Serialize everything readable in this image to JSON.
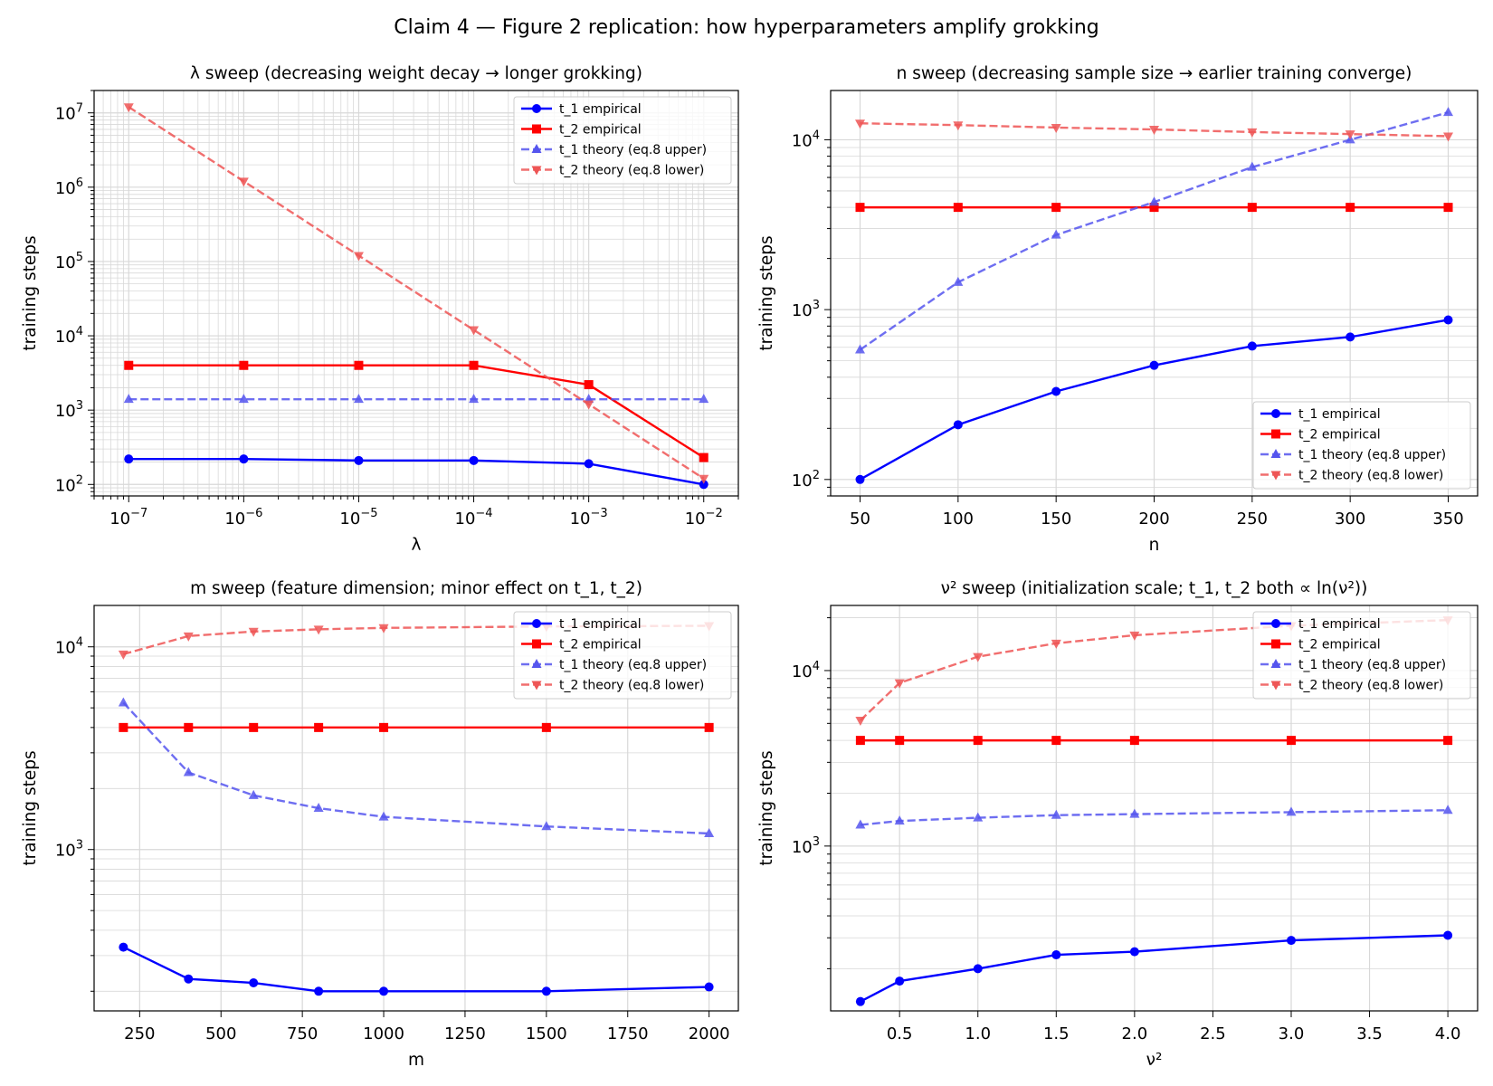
{
  "figure": {
    "title": "Claim 4 — Figure 2 replication: how hyperparameters amplify grokking"
  },
  "chart_data": [
    {
      "type": "line",
      "title": "λ sweep (decreasing weight decay → longer grokking)",
      "xlabel": "λ",
      "ylabel": "training steps",
      "xscale": "log",
      "yscale": "log",
      "xlim": [
        5e-08,
        0.02
      ],
      "ylim": [
        70,
        20000000.0
      ],
      "xticks": [
        1e-07,
        1e-06,
        1e-05,
        0.0001,
        0.001,
        0.01
      ],
      "xticklabels": [
        [
          "10",
          "−7"
        ],
        [
          "10",
          "−6"
        ],
        [
          "10",
          "−5"
        ],
        [
          "10",
          "−4"
        ],
        [
          "10",
          "−3"
        ],
        [
          "10",
          "−2"
        ]
      ],
      "yticks": [
        100,
        1000,
        10000,
        100000,
        1000000,
        10000000
      ],
      "yticklabels": [
        [
          "10",
          "2"
        ],
        [
          "10",
          "3"
        ],
        [
          "10",
          "4"
        ],
        [
          "10",
          "5"
        ],
        [
          "10",
          "6"
        ],
        [
          "10",
          "7"
        ]
      ],
      "grid": true,
      "minor_grid_x": true,
      "legend_loc": "top-right",
      "x": [
        1e-07,
        1e-06,
        1e-05,
        0.0001,
        0.001,
        0.01
      ],
      "series": [
        {
          "name": "t_1 empirical",
          "values": [
            220,
            220,
            210,
            210,
            190,
            100
          ],
          "color": "#0000ff",
          "dash": false,
          "marker": "circle"
        },
        {
          "name": "t_2 empirical",
          "values": [
            4000,
            4000,
            4000,
            4000,
            2200,
            230
          ],
          "color": "#ff0000",
          "dash": false,
          "marker": "square"
        },
        {
          "name": "t_1 theory (eq.8 upper)",
          "values": [
            1400,
            1400,
            1400,
            1400,
            1400,
            1400
          ],
          "color": "#5555ee",
          "dash": true,
          "marker": "triangle-up"
        },
        {
          "name": "t_2 theory (eq.8 lower)",
          "values": [
            12000000,
            1200000,
            120000,
            12000,
            1200,
            120
          ],
          "color": "#ee5555",
          "dash": true,
          "marker": "triangle-down"
        }
      ]
    },
    {
      "type": "line",
      "title": "n sweep (decreasing sample size → earlier training converge)",
      "xlabel": "n",
      "ylabel": "training steps",
      "xscale": "linear",
      "yscale": "log",
      "xlim": [
        35,
        365
      ],
      "ylim": [
        80,
        19500
      ],
      "xticks": [
        50,
        100,
        150,
        200,
        250,
        300,
        350
      ],
      "xticklabels": [
        [
          "50"
        ],
        [
          "100"
        ],
        [
          "150"
        ],
        [
          "200"
        ],
        [
          "250"
        ],
        [
          "300"
        ],
        [
          "350"
        ]
      ],
      "yticks": [
        100,
        1000,
        10000
      ],
      "yticklabels": [
        [
          "10",
          "2"
        ],
        [
          "10",
          "3"
        ],
        [
          "10",
          "4"
        ]
      ],
      "grid": true,
      "legend_loc": "bottom-right",
      "x": [
        50,
        100,
        150,
        200,
        250,
        300,
        350
      ],
      "series": [
        {
          "name": "t_1 empirical",
          "values": [
            100,
            210,
            330,
            470,
            610,
            690,
            870
          ],
          "color": "#0000ff",
          "dash": false,
          "marker": "circle"
        },
        {
          "name": "t_2 empirical",
          "values": [
            4000,
            4000,
            4000,
            4000,
            4000,
            4000,
            4000
          ],
          "color": "#ff0000",
          "dash": false,
          "marker": "square"
        },
        {
          "name": "t_1 theory (eq.8 upper)",
          "values": [
            580,
            1450,
            2750,
            4300,
            6900,
            10000,
            14500
          ],
          "color": "#5555ee",
          "dash": true,
          "marker": "triangle-up"
        },
        {
          "name": "t_2 theory (eq.8 lower)",
          "values": [
            12500,
            12200,
            11800,
            11500,
            11100,
            10800,
            10500
          ],
          "color": "#ee5555",
          "dash": true,
          "marker": "triangle-down"
        }
      ]
    },
    {
      "type": "line",
      "title": "m sweep (feature dimension; minor effect on t_1, t_2)",
      "xlabel": "m",
      "ylabel": "training steps",
      "xscale": "linear",
      "yscale": "log",
      "xlim": [
        110,
        2090
      ],
      "ylim": [
        160,
        16000
      ],
      "xticks": [
        250,
        500,
        750,
        1000,
        1250,
        1500,
        1750,
        2000
      ],
      "xticklabels": [
        [
          "250"
        ],
        [
          "500"
        ],
        [
          "750"
        ],
        [
          "1000"
        ],
        [
          "1250"
        ],
        [
          "1500"
        ],
        [
          "1750"
        ],
        [
          "2000"
        ]
      ],
      "yticks": [
        1000,
        10000
      ],
      "yticklabels": [
        [
          "10",
          "3"
        ],
        [
          "10",
          "4"
        ]
      ],
      "grid": true,
      "legend_loc": "top-right",
      "x": [
        200,
        400,
        600,
        800,
        1000,
        1500,
        2000
      ],
      "series": [
        {
          "name": "t_1 empirical",
          "values": [
            330,
            230,
            220,
            200,
            200,
            200,
            210
          ],
          "color": "#0000ff",
          "dash": false,
          "marker": "circle"
        },
        {
          "name": "t_2 empirical",
          "values": [
            4000,
            4000,
            4000,
            4000,
            4000,
            4000,
            4000
          ],
          "color": "#ff0000",
          "dash": false,
          "marker": "square"
        },
        {
          "name": "t_1 theory (eq.8 upper)",
          "values": [
            5300,
            2400,
            1850,
            1600,
            1450,
            1300,
            1200
          ],
          "color": "#5555ee",
          "dash": true,
          "marker": "triangle-up"
        },
        {
          "name": "t_2 theory (eq.8 lower)",
          "values": [
            9200,
            11300,
            11900,
            12200,
            12400,
            12600,
            12700
          ],
          "color": "#ee5555",
          "dash": true,
          "marker": "triangle-down"
        }
      ]
    },
    {
      "type": "line",
      "title": "ν² sweep (initialization scale; t_1, t_2 both ∝ ln(ν²))",
      "xlabel": "ν²",
      "ylabel": "training steps",
      "xscale": "linear",
      "yscale": "log",
      "xlim": [
        0.06,
        4.19
      ],
      "ylim": [
        115,
        23500
      ],
      "xticks": [
        0.5,
        1.0,
        1.5,
        2.0,
        2.5,
        3.0,
        3.5,
        4.0
      ],
      "xticklabels": [
        [
          "0.5"
        ],
        [
          "1.0"
        ],
        [
          "1.5"
        ],
        [
          "2.0"
        ],
        [
          "2.5"
        ],
        [
          "3.0"
        ],
        [
          "3.5"
        ],
        [
          "4.0"
        ]
      ],
      "yticks": [
        1000,
        10000
      ],
      "yticklabels": [
        [
          "10",
          "3"
        ],
        [
          "10",
          "4"
        ]
      ],
      "grid": true,
      "legend_loc": "top-right",
      "x": [
        0.25,
        0.5,
        1.0,
        1.5,
        2.0,
        3.0,
        4.0
      ],
      "series": [
        {
          "name": "t_1 empirical",
          "values": [
            130,
            170,
            200,
            240,
            250,
            290,
            310
          ],
          "color": "#0000ff",
          "dash": false,
          "marker": "circle"
        },
        {
          "name": "t_2 empirical",
          "values": [
            4000,
            4000,
            4000,
            4000,
            4000,
            4000,
            4000
          ],
          "color": "#ff0000",
          "dash": false,
          "marker": "square"
        },
        {
          "name": "t_1 theory (eq.8 upper)",
          "values": [
            1320,
            1390,
            1450,
            1500,
            1520,
            1560,
            1600
          ],
          "color": "#5555ee",
          "dash": true,
          "marker": "triangle-up"
        },
        {
          "name": "t_2 theory (eq.8 lower)",
          "values": [
            5200,
            8500,
            12000,
            14300,
            15900,
            18000,
            19400
          ],
          "color": "#ee5555",
          "dash": true,
          "marker": "triangle-down"
        }
      ]
    }
  ]
}
